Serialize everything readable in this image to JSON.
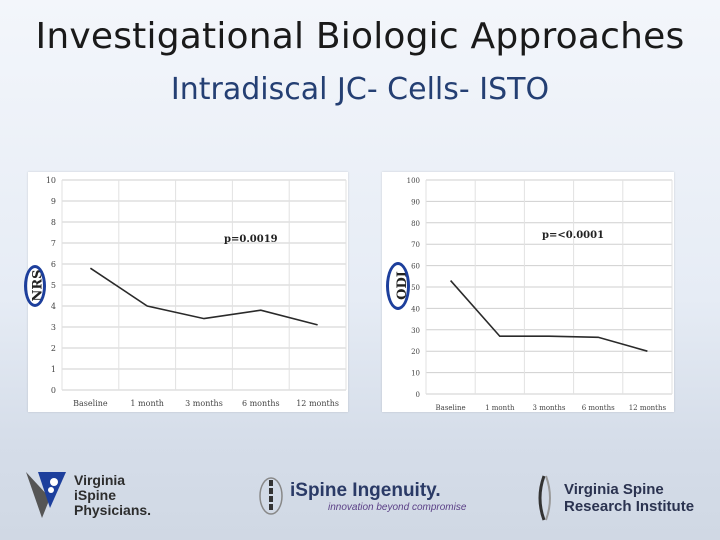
{
  "slide": {
    "title": "Investigational Biologic Approaches",
    "subtitle": "Intradiscal JC- Cells- ISTO"
  },
  "chart_data": [
    {
      "type": "line",
      "ylabel": "NRS",
      "annotation": "p=0.0019",
      "categories": [
        "Baseline",
        "1 month",
        "3 months",
        "6 months",
        "12 months"
      ],
      "values": [
        5.8,
        4.0,
        3.4,
        3.8,
        3.1
      ],
      "yticks": [
        0,
        1,
        2,
        3,
        4,
        5,
        6,
        7,
        8,
        9,
        10
      ],
      "ylim": [
        0,
        10
      ],
      "grid": true
    },
    {
      "type": "line",
      "ylabel": "ODI",
      "annotation": "p=<0.0001",
      "categories": [
        "Baseline",
        "1 month",
        "3 months",
        "6 months",
        "12 months"
      ],
      "values": [
        53,
        27,
        27,
        26.5,
        20
      ],
      "yticks": [
        0,
        10,
        20,
        30,
        40,
        50,
        60,
        70,
        80,
        90,
        100
      ],
      "ylim": [
        0,
        100
      ],
      "grid": true
    }
  ],
  "footer": {
    "logo1": {
      "line1": "Virginia",
      "line2": "iSpine",
      "line3": "Physicians",
      "mark": "."
    },
    "logo2": {
      "name": "iSpine Ingenuity",
      "mark": ".",
      "tagline": "innovation beyond compromise"
    },
    "logo3": {
      "line1": "Virginia Spine",
      "line2": "Research Institute"
    },
    "colors": {
      "brand_blue": "#1d3f9c",
      "gray": "#555555",
      "accent_purple": "#5a3f86"
    }
  }
}
